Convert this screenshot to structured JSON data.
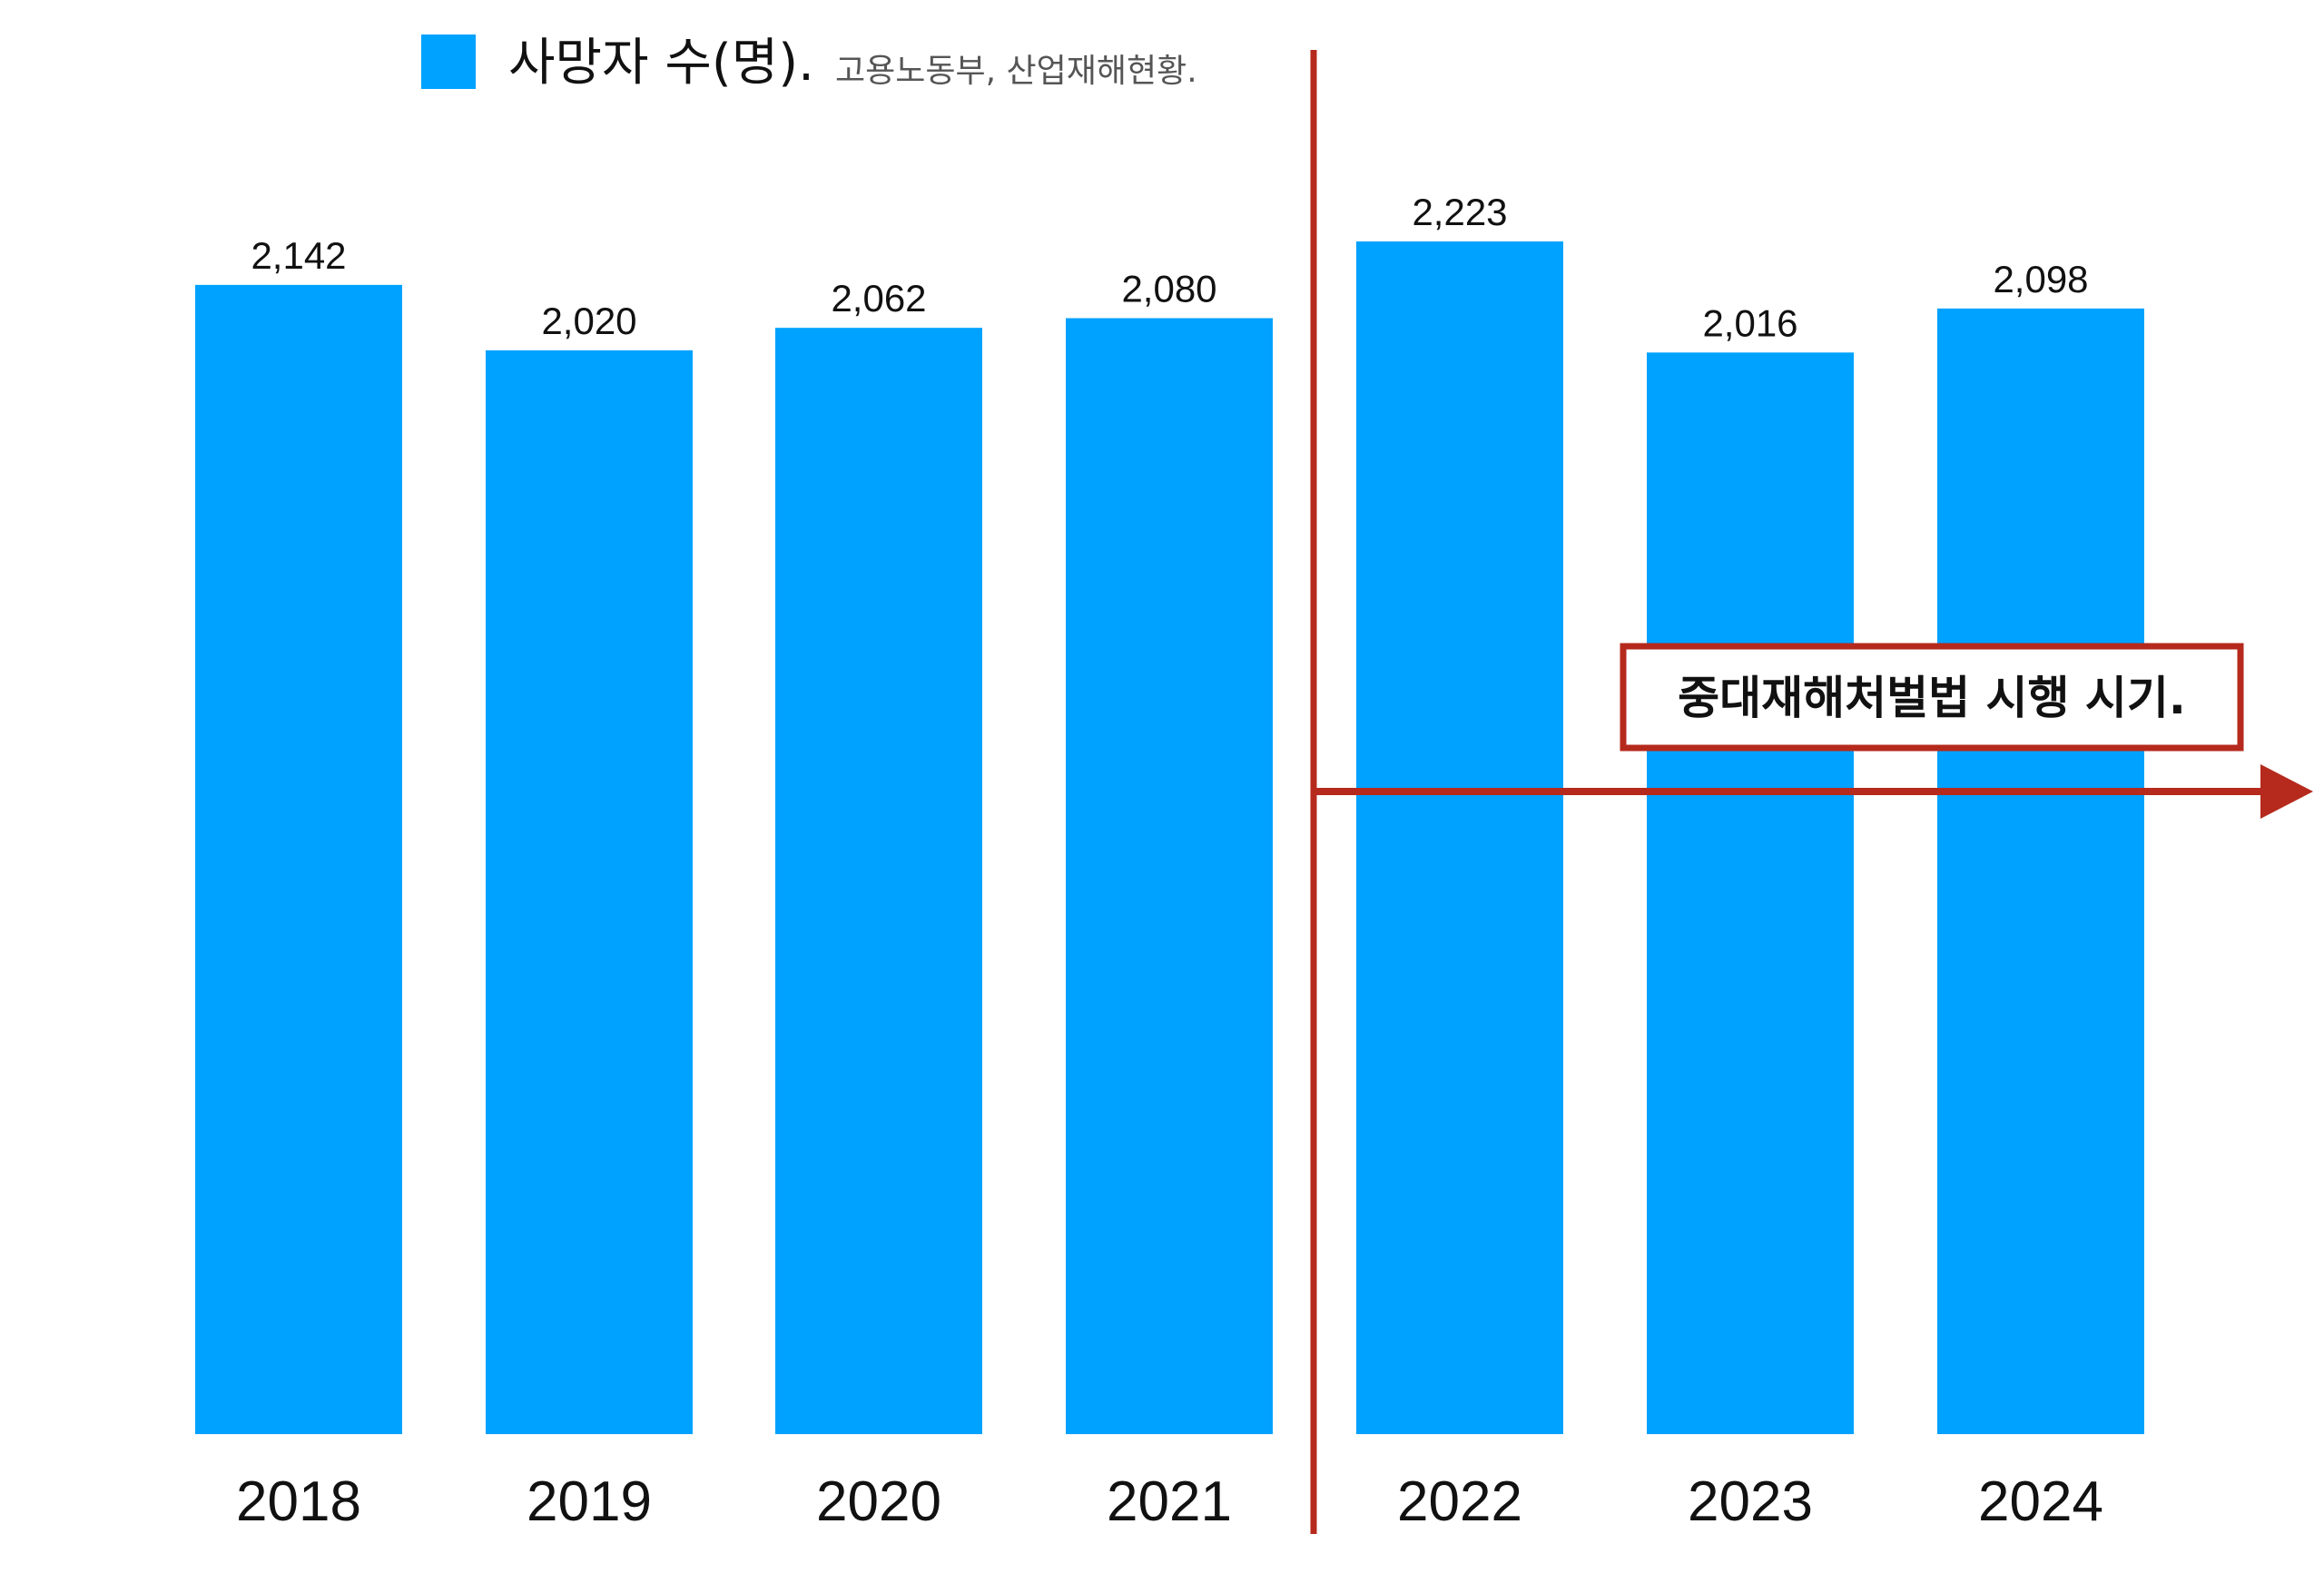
{
  "legend": {
    "title": "사망자 수(명).",
    "source": "고용노동부, 산업재해현황."
  },
  "annotation": {
    "text": "중대재해처벌법 시행 시기.",
    "start_year": "2022"
  },
  "colors": {
    "bar": "#00a2ff",
    "annotation": "#b52a1c",
    "text": "#111111",
    "source_text": "#555555",
    "background": "#ffffff"
  },
  "chart_data": {
    "type": "bar",
    "categories": [
      "2018",
      "2019",
      "2020",
      "2021",
      "2022",
      "2023",
      "2024"
    ],
    "values": [
      2142,
      2020,
      2062,
      2080,
      2223,
      2016,
      2098
    ],
    "value_labels": [
      "2,142",
      "2,020",
      "2,062",
      "2,080",
      "2,223",
      "2,016",
      "2,098"
    ],
    "series": [
      {
        "name": "사망자 수(명).",
        "values": [
          2142,
          2020,
          2062,
          2080,
          2223,
          2016,
          2098
        ]
      }
    ],
    "title": "",
    "xlabel": "",
    "ylabel": "",
    "ylim": [
      0,
      2223
    ],
    "grid": false,
    "legend_position": "top-left",
    "y_axis_visible": false
  }
}
